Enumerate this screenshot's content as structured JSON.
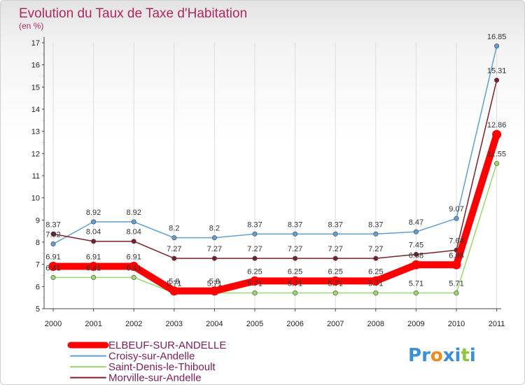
{
  "chart_data": {
    "type": "line",
    "title": "Evolution du Taux de Taxe d'Habitation",
    "subtitle": "(en %)",
    "xlabel": "",
    "ylabel": "(en %)",
    "categories": [
      "2000",
      "2001",
      "2002",
      "2003",
      "2004",
      "2005",
      "2006",
      "2007",
      "2008",
      "2009",
      "2010",
      "2011"
    ],
    "ylim": [
      5,
      17
    ],
    "yticks": [
      5,
      6,
      7,
      8,
      9,
      10,
      11,
      12,
      13,
      14,
      15,
      16,
      17
    ],
    "grid": "vertical",
    "series": [
      {
        "name": "ELBEUF-SUR-ANDELLE",
        "color": "#ff0000",
        "values": [
          6.91,
          6.91,
          6.91,
          5.8,
          5.8,
          6.25,
          6.25,
          6.25,
          6.25,
          6.98,
          6.98,
          12.86
        ],
        "labels": [
          "6.91",
          "6.91",
          "6.91",
          "5.8",
          "5.8",
          "6.25",
          "6.25",
          "6.25",
          "6.25",
          "6.98",
          "6.98",
          "12.86"
        ]
      },
      {
        "name": "Croisy-sur-Andelle",
        "color": "#5f9fd3",
        "values": [
          7.92,
          8.92,
          8.92,
          8.2,
          8.2,
          8.37,
          8.37,
          8.37,
          8.37,
          8.47,
          9.07,
          16.85
        ],
        "labels": [
          "7.92",
          "8.92",
          "8.92",
          "8.2",
          "8.2",
          "8.37",
          "8.37",
          "8.37",
          "8.37",
          "8.47",
          "9.07",
          "16.85"
        ]
      },
      {
        "name": "Saint-Denis-le-Thiboult",
        "color": "#9ad86a",
        "values": [
          6.41,
          6.41,
          6.41,
          5.71,
          5.71,
          5.71,
          5.71,
          5.71,
          5.71,
          5.71,
          5.71,
          11.55
        ],
        "labels": [
          "6.41",
          "6.41",
          "6.41",
          "5.71",
          "5.71",
          "5.71",
          "5.71",
          "5.71",
          "5.71",
          "5.71",
          "5.71",
          "11.55"
        ]
      },
      {
        "name": "Morville-sur-Andelle",
        "color": "#7a1f2a",
        "values": [
          8.37,
          8.04,
          8.04,
          7.27,
          7.27,
          7.27,
          7.27,
          7.27,
          7.27,
          7.45,
          7.64,
          15.31
        ],
        "labels": [
          "8.37",
          "8.04",
          "8.04",
          "7.27",
          "7.27",
          "7.27",
          "7.27",
          "7.27",
          "7.27",
          "7.45",
          "7.64",
          "15.31"
        ]
      }
    ]
  },
  "watermark": {
    "text": "Proxiti",
    "letters": [
      "P",
      "r",
      "o",
      "x",
      "i",
      "t",
      "i"
    ],
    "colors": [
      "#3a8fd8",
      "#3a8fd8",
      "#f08a1c",
      "#3a8fd8",
      "#3a8fd8",
      "#8fc63f",
      "#3a8fd8"
    ]
  }
}
